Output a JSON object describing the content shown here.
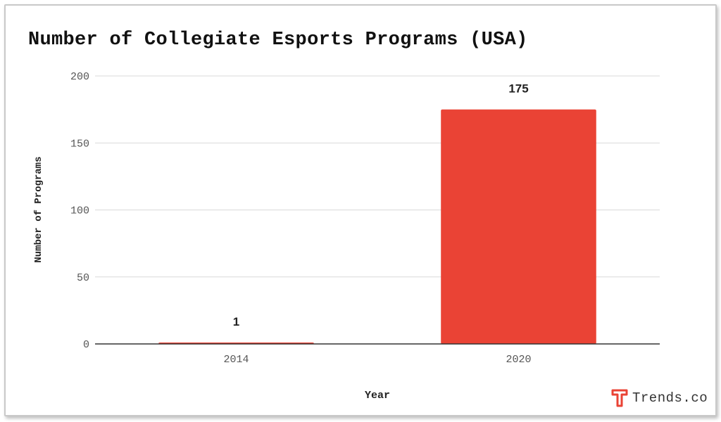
{
  "chart_data": {
    "type": "bar",
    "title": "Number of Collegiate Esports Programs (USA)",
    "xlabel": "Year",
    "ylabel": "Number of Programs",
    "categories": [
      "2014",
      "2020"
    ],
    "values": [
      1,
      175
    ],
    "data_labels": [
      "1",
      "175"
    ],
    "ylim": [
      0,
      200
    ],
    "yticks": [
      "0",
      "50",
      "100",
      "150",
      "200"
    ],
    "grid": true,
    "bar_color": "#ea4335"
  },
  "brand": {
    "name": "Trends.co",
    "icon": "trends-logo-icon",
    "color": "#ea4335"
  }
}
